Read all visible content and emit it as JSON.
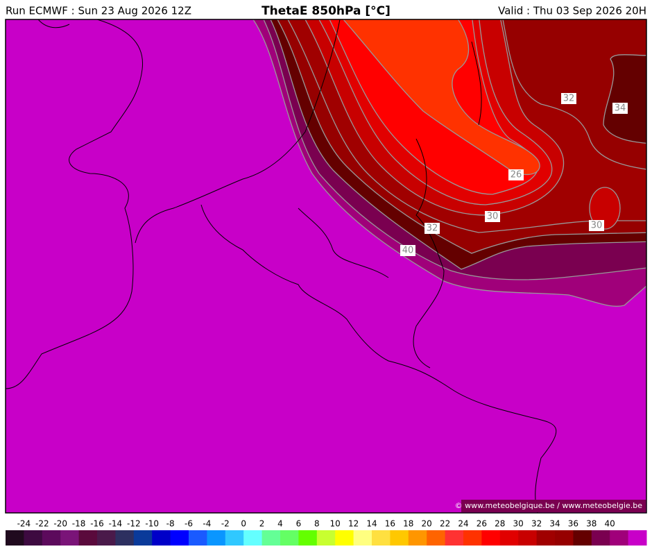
{
  "header": {
    "run": "Run ECMWF : Sun 23 Aug 2026 12Z",
    "title": "ThetaE 850hPa [°C]",
    "valid": "Valid : Thu 03 Sep 2026 20H"
  },
  "contour_labels": [
    32,
    34,
    26,
    30,
    30,
    32,
    40
  ],
  "copyright": "© www.meteobelgique.be / www.meteobelgie.be",
  "colorbar": {
    "ticks": [
      -24,
      -22,
      -20,
      -18,
      -16,
      -14,
      -12,
      -10,
      -8,
      -6,
      -4,
      -2,
      0,
      2,
      4,
      6,
      8,
      10,
      12,
      14,
      16,
      18,
      20,
      22,
      24,
      26,
      28,
      30,
      32,
      34,
      36,
      38,
      40
    ],
    "colors": [
      "#200a1e",
      "#3d0a40",
      "#5c0a5c",
      "#7a1478",
      "#5a0a3c",
      "#4a1a4a",
      "#2d3060",
      "#0a3a9a",
      "#0000c8",
      "#0000ff",
      "#1a5aff",
      "#0a96ff",
      "#30c8ff",
      "#64ffff",
      "#64ff96",
      "#64ff64",
      "#64ff00",
      "#c8ff30",
      "#ffff00",
      "#ffff80",
      "#ffe040",
      "#ffc800",
      "#ff9600",
      "#ff6400",
      "#ff3232",
      "#ff3200",
      "#ff0000",
      "#e10000",
      "#c80000",
      "#a00000",
      "#960000",
      "#640000",
      "#7a0050",
      "#a0007a",
      "#c800c8"
    ]
  }
}
